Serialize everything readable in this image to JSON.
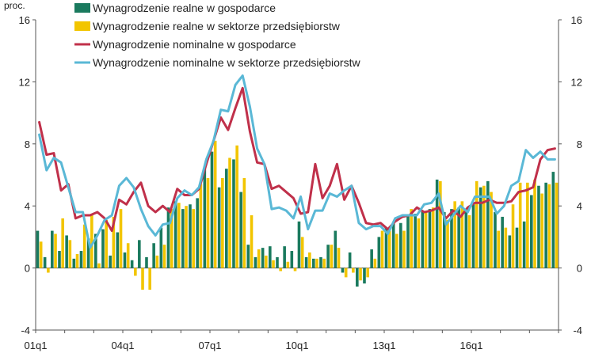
{
  "chart_data": {
    "type": "bar",
    "unit_label": "proc.",
    "ylim": [
      -4,
      16
    ],
    "yticks": [
      -4,
      0,
      4,
      8,
      12,
      16
    ],
    "grid": false,
    "legend_position": "top-left",
    "quarters_start": "2001q1",
    "quarters_count": 72,
    "xtick_labels": [
      {
        "index": 0,
        "label": "01q1"
      },
      {
        "index": 12,
        "label": "04q1"
      },
      {
        "index": 24,
        "label": "07q1"
      },
      {
        "index": 36,
        "label": "10q1"
      },
      {
        "index": 48,
        "label": "13q1"
      },
      {
        "index": 60,
        "label": "16q1"
      }
    ],
    "colors": {
      "real_economy": "#1a7a5e",
      "real_enterprise": "#f2c500",
      "nominal_economy": "#c0304a",
      "nominal_enterprise": "#5ab8d6"
    },
    "series": [
      {
        "name": "Wynagrodzenie realne w gospodarce",
        "kind": "bar",
        "color_key": "real_economy",
        "values": [
          2.4,
          0.7,
          2.4,
          1.1,
          2.1,
          0.6,
          1.1,
          1.9,
          2.2,
          2.5,
          0.8,
          2.3,
          1.0,
          0.5,
          1.8,
          0.7,
          1.6,
          2.6,
          3.9,
          4.3,
          3.8,
          4.1,
          4.5,
          6.4,
          7.5,
          5.2,
          6.4,
          7.0,
          4.9,
          1.5,
          0.7,
          1.3,
          1.4,
          0.7,
          1.4,
          1.1,
          3.0,
          0.7,
          0.6,
          0.7,
          1.5,
          2.4,
          -0.3,
          1.0,
          -1.2,
          -1.0,
          1.2,
          2.0,
          2.6,
          2.9,
          2.9,
          3.4,
          3.5,
          3.7,
          3.8,
          5.7,
          3.6,
          3.8,
          3.9,
          3.6,
          4.2,
          5.2,
          5.6,
          3.6,
          3.3,
          2.1,
          2.6,
          3.0,
          4.7,
          5.3,
          5.5,
          6.2
        ]
      },
      {
        "name": "Wynagrodzenie realne w sektorze przedsiębiorstw",
        "kind": "bar",
        "color_key": "real_enterprise",
        "values": [
          1.7,
          -0.3,
          2.2,
          3.2,
          1.8,
          0.9,
          2.8,
          3.5,
          0.3,
          3.1,
          3.3,
          3.8,
          1.6,
          -0.5,
          -1.4,
          -1.4,
          0.8,
          1.5,
          3.8,
          4.2,
          4.0,
          3.8,
          5.4,
          5.8,
          8.2,
          5.8,
          7.1,
          7.9,
          5.8,
          3.4,
          1.2,
          0.8,
          0.5,
          -0.2,
          0.4,
          -0.2,
          2.0,
          1.0,
          0.6,
          0.6,
          1.5,
          1.3,
          -0.6,
          -0.3,
          -0.8,
          -0.6,
          0.6,
          2.4,
          2.4,
          2.2,
          2.4,
          3.8,
          3.2,
          3.6,
          3.9,
          5.6,
          3.1,
          4.3,
          4.3,
          3.4,
          5.6,
          5.3,
          4.9,
          2.4,
          2.6,
          4.1,
          5.5,
          5.5,
          5.7,
          4.8,
          5.4,
          5.5
        ]
      },
      {
        "name": "Wynagrodzenie nominalne w gospodarce",
        "kind": "line",
        "color_key": "nominal_economy",
        "values": [
          9.4,
          7.3,
          7.4,
          5.0,
          5.4,
          3.2,
          3.4,
          3.4,
          3.6,
          3.2,
          2.4,
          4.4,
          4.1,
          4.9,
          5.5,
          4.0,
          3.6,
          4.0,
          3.6,
          5.1,
          4.7,
          4.7,
          5.1,
          6.7,
          8.2,
          9.7,
          8.9,
          10.3,
          11.6,
          8.8,
          6.8,
          6.7,
          5.1,
          5.3,
          4.9,
          4.5,
          3.5,
          3.6,
          6.7,
          4.5,
          5.3,
          6.7,
          4.4,
          5.3,
          4.2,
          2.9,
          2.8,
          2.9,
          2.5,
          3.0,
          3.3,
          3.4,
          3.9,
          3.6,
          3.7,
          3.9,
          3.2,
          3.7,
          3.3,
          3.9,
          4.2,
          4.2,
          4.4,
          4.2,
          4.2,
          4.3,
          4.9,
          5.0,
          5.2,
          7.0,
          7.6,
          7.7
        ]
      },
      {
        "name": "Wynagrodzenie nominalne w sektorze przedsiębiorstw",
        "kind": "line",
        "color_key": "nominal_enterprise",
        "values": [
          8.6,
          6.3,
          7.1,
          6.8,
          5.2,
          3.6,
          3.6,
          1.3,
          2.1,
          3.1,
          3.4,
          5.3,
          5.8,
          5.2,
          3.8,
          2.7,
          2.1,
          2.8,
          2.9,
          4.5,
          5.0,
          4.7,
          5.2,
          7.0,
          8.2,
          10.2,
          10.1,
          11.8,
          12.4,
          10.4,
          7.7,
          6.7,
          3.8,
          3.9,
          3.7,
          3.2,
          4.6,
          2.5,
          3.7,
          3.7,
          4.8,
          4.6,
          5.0,
          5.3,
          2.9,
          2.5,
          2.7,
          2.7,
          2.2,
          3.2,
          3.4,
          3.4,
          3.4,
          4.1,
          4.2,
          4.8,
          2.8,
          3.4,
          4.0,
          3.6,
          4.6,
          4.6,
          4.6,
          3.5,
          4.0,
          5.3,
          5.6,
          7.6,
          7.1,
          7.5,
          7.0,
          7.0
        ]
      }
    ]
  }
}
